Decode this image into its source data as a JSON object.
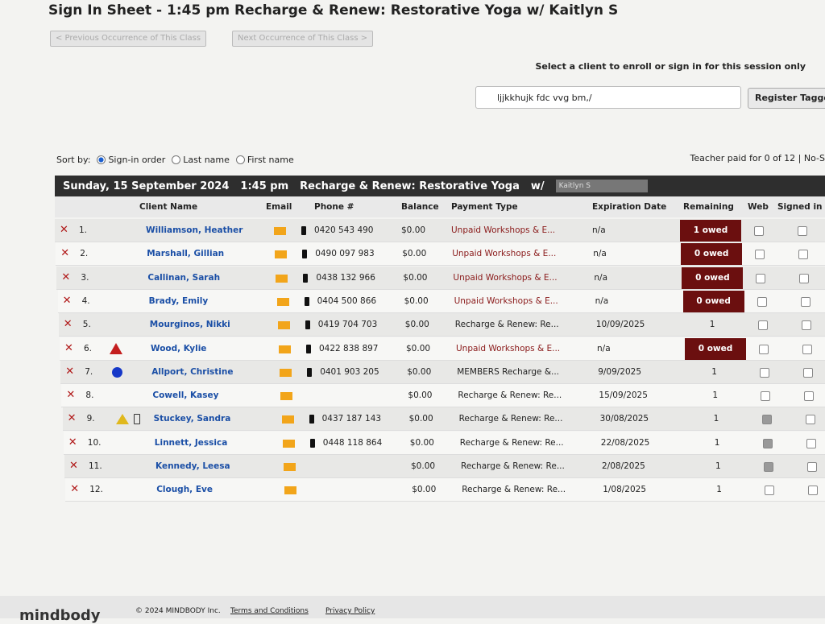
{
  "header": {
    "title": "Sign In Sheet  -  1:45 pm   Recharge & Renew: Restorative Yoga w/  Kaitlyn S",
    "prev_button": "< Previous Occurrence of This Class",
    "next_button": "Next Occurrence of This Class >"
  },
  "enroll": {
    "prompt": "Select a client to enroll or sign in for this session only",
    "search_value": "ljjkkhujk fdc vvg bm,/",
    "register_button": "Register Tagged"
  },
  "sort": {
    "label": "Sort by:",
    "options": [
      "Sign-in order",
      "Last name",
      "First name"
    ],
    "selected": 0
  },
  "teacher_paid": "Teacher paid for 0 of 12 | No-S",
  "class_bar": {
    "date": "Sunday, 15 September 2024",
    "time": "1:45 pm",
    "class_name": "Recharge & Renew: Restorative Yoga",
    "with": "w/",
    "teacher": "Kaitlyn S"
  },
  "table": {
    "columns": [
      "Client Name",
      "Email",
      "Phone #",
      "Balance",
      "Payment Type",
      "Expiration Date",
      "Remaining",
      "Web",
      "Signed in"
    ],
    "rows": [
      {
        "number": "1.",
        "name": "Williamson, Heather",
        "phone": "0420 543 490",
        "balance": "$0.00",
        "payment": "Unpaid Workshops & E...",
        "expiration": "n/a",
        "remaining": "1 owed",
        "owed": true,
        "web": false
      },
      {
        "number": "2.",
        "name": "Marshall, Gillian",
        "phone": "0490 097 983",
        "balance": "$0.00",
        "payment": "Unpaid Workshops & E...",
        "expiration": "n/a",
        "remaining": "0 owed",
        "owed": true,
        "web": false
      },
      {
        "number": "3.",
        "name": "Callinan, Sarah",
        "phone": "0438 132 966",
        "balance": "$0.00",
        "payment": "Unpaid Workshops & E...",
        "expiration": "n/a",
        "remaining": "0 owed",
        "owed": true,
        "web": false
      },
      {
        "number": "4.",
        "name": "Brady, Emily",
        "phone": "0404 500 866",
        "balance": "$0.00",
        "payment": "Unpaid Workshops & E...",
        "expiration": "n/a",
        "remaining": "0 owed",
        "owed": true,
        "web": false
      },
      {
        "number": "5.",
        "name": "Mourginos, Nikki",
        "phone": "0419 704 703",
        "balance": "$0.00",
        "payment": "Recharge & Renew: Re...",
        "expiration": "10/09/2025",
        "remaining": "1",
        "owed": false,
        "web": false
      },
      {
        "number": "6.",
        "name": "Wood, Kylie",
        "phone": "0422 838 897",
        "balance": "$0.00",
        "payment": "Unpaid Workshops & E...",
        "expiration": "n/a",
        "remaining": "0 owed",
        "owed": true,
        "web": false,
        "icons": [
          "warning-red"
        ]
      },
      {
        "number": "7.",
        "name": "Allport, Christine",
        "phone": "0401 903 205",
        "balance": "$0.00",
        "payment": "MEMBERS Recharge &...",
        "expiration": "9/09/2025",
        "remaining": "1",
        "owed": false,
        "web": false,
        "icons": [
          "dot-blue"
        ]
      },
      {
        "number": "8.",
        "name": "Cowell, Kasey",
        "phone": null,
        "balance": "$0.00",
        "payment": "Recharge & Renew: Re...",
        "expiration": "15/09/2025",
        "remaining": "1",
        "owed": false,
        "web": false
      },
      {
        "number": "9.",
        "name": "Stuckey, Sandra",
        "phone": "0437 187 143",
        "balance": "$0.00",
        "payment": "Recharge & Renew: Re...",
        "expiration": "30/08/2025",
        "remaining": "1",
        "owed": false,
        "web": true,
        "icons": [
          "warning-yellow",
          "mobile"
        ]
      },
      {
        "number": "10.",
        "name": "Linnett, Jessica",
        "phone": "0448 118 864",
        "balance": "$0.00",
        "payment": "Recharge & Renew: Re...",
        "expiration": "22/08/2025",
        "remaining": "1",
        "owed": false,
        "web": true
      },
      {
        "number": "11.",
        "name": "Kennedy, Leesa",
        "phone": null,
        "balance": "$0.00",
        "payment": "Recharge & Renew: Re...",
        "expiration": "2/08/2025",
        "remaining": "1",
        "owed": false,
        "web": true
      },
      {
        "number": "12.",
        "name": "Clough, Eve",
        "phone": null,
        "balance": "$0.00",
        "payment": "Recharge & Renew: Re...",
        "expiration": "1/08/2025",
        "remaining": "1",
        "owed": false,
        "web": false
      }
    ]
  },
  "footer": {
    "logo": "mindbody",
    "copyright": "© 2024 MINDBODY Inc.",
    "links": [
      "Terms and Conditions",
      "Privacy Policy"
    ]
  }
}
